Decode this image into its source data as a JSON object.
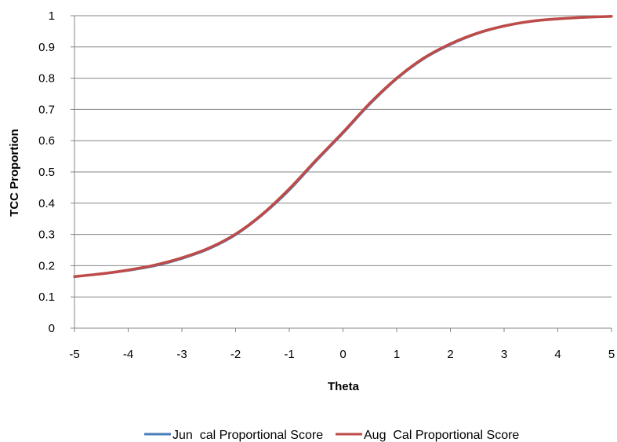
{
  "chart_data": {
    "type": "line",
    "title": "",
    "xlabel": "Theta",
    "ylabel": "TCC Proportion",
    "xlim": [
      -5,
      5
    ],
    "ylim": [
      0,
      1
    ],
    "x_ticks": [
      "-5",
      "-4",
      "-3",
      "-2",
      "-1",
      "0",
      "1",
      "2",
      "3",
      "4",
      "5"
    ],
    "y_ticks": [
      "0",
      "0.1",
      "0.2",
      "0.3",
      "0.4",
      "0.5",
      "0.6",
      "0.7",
      "0.8",
      "0.9",
      "1"
    ],
    "grid": "horizontal",
    "legend_position": "bottom",
    "x": [
      -5,
      -4.5,
      -4,
      -3.5,
      -3,
      -2.5,
      -2,
      -1.5,
      -1,
      -0.5,
      0,
      0.5,
      1,
      1.5,
      2,
      2.5,
      3,
      3.5,
      4,
      4.5,
      5
    ],
    "series": [
      {
        "name": "Jun  cal Proportional Score",
        "color": "#4a7ebb",
        "values": [
          0.165,
          0.173,
          0.184,
          0.199,
          0.222,
          0.253,
          0.298,
          0.362,
          0.441,
          0.534,
          0.623,
          0.716,
          0.797,
          0.861,
          0.907,
          0.942,
          0.966,
          0.981,
          0.989,
          0.994,
          0.997
        ]
      },
      {
        "name": "Aug  Cal Proportional Score",
        "color": "#be4b48",
        "values": [
          0.165,
          0.174,
          0.186,
          0.202,
          0.225,
          0.256,
          0.301,
          0.365,
          0.446,
          0.538,
          0.627,
          0.72,
          0.8,
          0.864,
          0.91,
          0.944,
          0.967,
          0.982,
          0.99,
          0.995,
          0.998
        ]
      }
    ]
  }
}
